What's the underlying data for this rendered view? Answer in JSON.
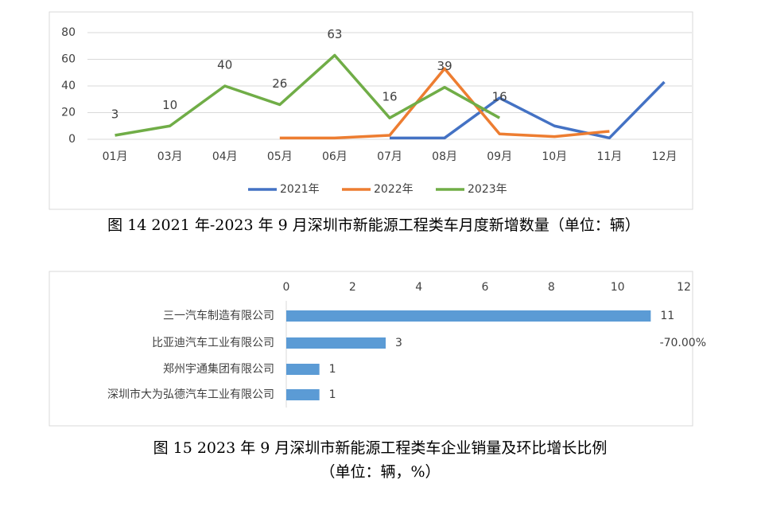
{
  "chart_data": [
    {
      "type": "line",
      "title": "图 14 2021 年-2023 年 9 月深圳市新能源工程类车月度新增数量（单位：辆）",
      "categories": [
        "01月",
        "03月",
        "04月",
        "05月",
        "06月",
        "07月",
        "08月",
        "09月",
        "10月",
        "11月",
        "12月"
      ],
      "series": [
        {
          "name": "2021年",
          "color": "#4472c4",
          "values": [
            null,
            null,
            null,
            null,
            null,
            1,
            1,
            31,
            10,
            1,
            43
          ]
        },
        {
          "name": "2022年",
          "color": "#ed7d31",
          "values": [
            null,
            null,
            null,
            1,
            1,
            3,
            53,
            4,
            2,
            6,
            null
          ]
        },
        {
          "name": "2023年",
          "color": "#70ad47",
          "values": [
            3,
            10,
            40,
            26,
            63,
            16,
            39,
            16,
            null,
            null,
            null
          ],
          "data_labels": true
        }
      ],
      "ylim": [
        0,
        80
      ],
      "yticks": [
        0,
        20,
        40,
        60,
        80
      ],
      "grid": true,
      "legend": "bottom"
    },
    {
      "type": "hbar",
      "title": "图 15 2023 年 9 月深圳市新能源工程类车企业销量及环比增长比例",
      "subtitle": "（单位：辆，%）",
      "categories": [
        "三一汽车制造有限公司",
        "比亚迪汽车工业有限公司",
        "郑州宇通集团有限公司",
        "深圳市大为弘德汽车工业有限公司"
      ],
      "values": [
        11,
        3,
        1,
        1
      ],
      "color": "#5b9bd5",
      "annotation": "-70.00%",
      "xlim": [
        0,
        12
      ],
      "xticks": [
        0,
        2,
        4,
        6,
        8,
        10,
        12
      ],
      "grid": false
    }
  ]
}
